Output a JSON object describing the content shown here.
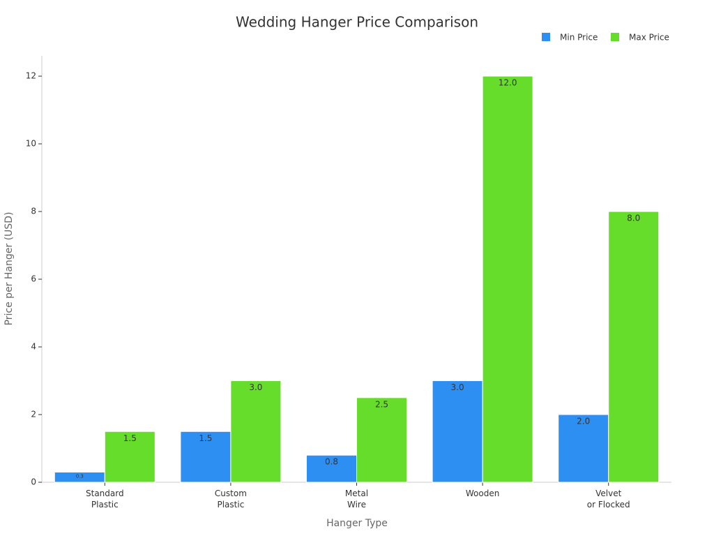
{
  "chart_data": {
    "type": "bar",
    "title": "Wedding Hanger Price Comparison",
    "x_label": "Hanger Type",
    "y_label": "Price per Hanger (USD)",
    "categories": [
      "Standard\nPlastic",
      "Custom\nPlastic",
      "Metal\nWire",
      "Wooden",
      "Velvet\nor Flocked"
    ],
    "series": [
      {
        "name": "Min Price",
        "color": "#2e8ff2",
        "values": [
          0.3,
          1.5,
          0.8,
          3.0,
          2.0
        ],
        "value_labels": [
          "0.3",
          "1.5",
          "0.8",
          "3.0",
          "2.0"
        ]
      },
      {
        "name": "Max Price",
        "color": "#66dd2a",
        "values": [
          1.5,
          3.0,
          2.5,
          12.0,
          8.0
        ],
        "value_labels": [
          "1.5",
          "3.0",
          "2.5",
          "12.0",
          "8.0"
        ]
      }
    ],
    "ylim": [
      0,
      12.6
    ],
    "yticks": [
      0,
      2,
      4,
      6,
      8,
      10,
      12
    ],
    "grid": false,
    "legend": "top-right"
  }
}
